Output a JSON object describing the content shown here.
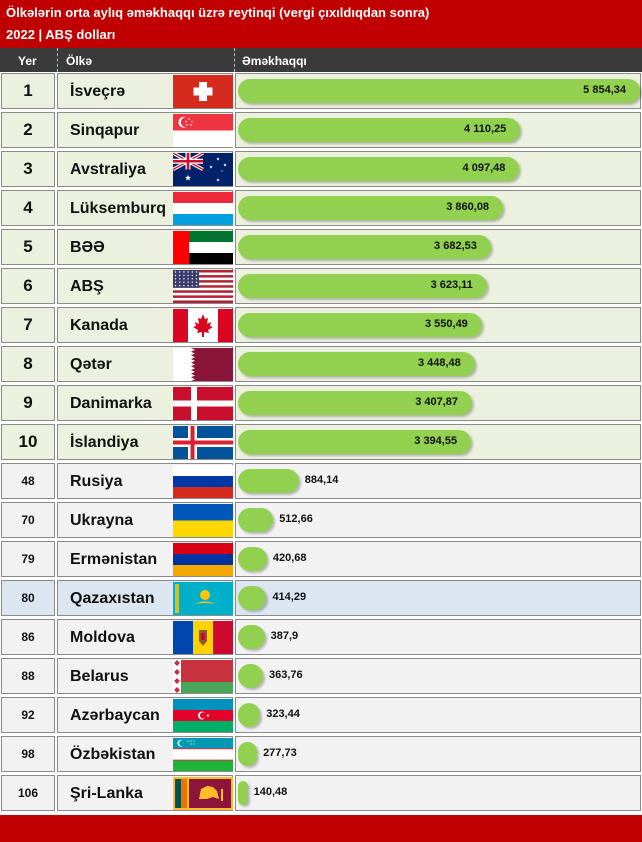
{
  "header": {
    "title": "Ölkələrin orta aylıq əməkhaqqı üzrə reytinqi (vergi çıxıldıqdan sonra)",
    "subtitle": "2022 |  ABŞ dolları"
  },
  "columns": {
    "rank": "Yer",
    "country": "Ölkə",
    "salary": "Əməkhaqqı"
  },
  "chart_data": {
    "type": "bar",
    "orientation": "horizontal",
    "title": "Ölkələrin orta aylıq əməkhaqqı üzrə reytinqi (vergi çıxıldıqdan sonra)",
    "subtitle": "2022 |  ABŞ dolları",
    "xlim": [
      0,
      5854.34
    ],
    "rows": [
      {
        "rank": "1",
        "country": "İsveçrə",
        "value": 5854.34,
        "label": "5 854,34",
        "flag": "switzerland-flag-icon"
      },
      {
        "rank": "2",
        "country": "Sinqapur",
        "value": 4110.25,
        "label": "4 110,25",
        "flag": "singapore-flag-icon"
      },
      {
        "rank": "3",
        "country": "Avstraliya",
        "value": 4097.48,
        "label": "4 097,48",
        "flag": "australia-flag-icon"
      },
      {
        "rank": "4",
        "country": "Lüksemburq",
        "value": 3860.08,
        "label": "3 860,08",
        "flag": "luxembourg-flag-icon"
      },
      {
        "rank": "5",
        "country": "BƏƏ",
        "value": 3682.53,
        "label": "3 682,53",
        "flag": "uae-flag-icon"
      },
      {
        "rank": "6",
        "country": "ABŞ",
        "value": 3623.11,
        "label": "3 623,11",
        "flag": "usa-flag-icon"
      },
      {
        "rank": "7",
        "country": "Kanada",
        "value": 3550.49,
        "label": "3 550,49",
        "flag": "canada-flag-icon"
      },
      {
        "rank": "8",
        "country": "Qətər",
        "value": 3448.48,
        "label": "3 448,48",
        "flag": "qatar-flag-icon"
      },
      {
        "rank": "9",
        "country": "Danimarka",
        "value": 3407.87,
        "label": "3 407,87",
        "flag": "denmark-flag-icon"
      },
      {
        "rank": "10",
        "country": "İslandiya",
        "value": 3394.55,
        "label": "3 394,55",
        "flag": "iceland-flag-icon"
      },
      {
        "rank": "48",
        "country": "Rusiya",
        "value": 884.14,
        "label": "884,14",
        "flag": "russia-flag-icon"
      },
      {
        "rank": "70",
        "country": "Ukrayna",
        "value": 512.66,
        "label": "512,66",
        "flag": "ukraine-flag-icon"
      },
      {
        "rank": "79",
        "country": "Ermənistan",
        "value": 420.68,
        "label": "420,68",
        "flag": "armenia-flag-icon"
      },
      {
        "rank": "80",
        "country": "Qazaxıstan",
        "value": 414.29,
        "label": "414,29",
        "flag": "kazakhstan-flag-icon"
      },
      {
        "rank": "86",
        "country": "Moldova",
        "value": 387.9,
        "label": "387,9",
        "flag": "moldova-flag-icon"
      },
      {
        "rank": "88",
        "country": "Belarus",
        "value": 363.76,
        "label": "363,76",
        "flag": "belarus-flag-icon"
      },
      {
        "rank": "92",
        "country": "Azərbaycan",
        "value": 323.44,
        "label": "323,44",
        "flag": "azerbaijan-flag-icon"
      },
      {
        "rank": "98",
        "country": "Özbəkistan",
        "value": 277.73,
        "label": "277,73",
        "flag": "uzbekistan-flag-icon"
      },
      {
        "rank": "106",
        "country": "Şri-Lanka",
        "value": 140.48,
        "label": "140,48",
        "flag": "sri-lanka-flag-icon"
      }
    ],
    "highlight_rank": "80"
  },
  "colors": {
    "header": "#c00000",
    "column_header": "#3a3a3a",
    "bar": "#92d050",
    "top_row": "#ebf1de",
    "other_row": "#f2f2f2",
    "highlight_row": "#dce6f1"
  }
}
